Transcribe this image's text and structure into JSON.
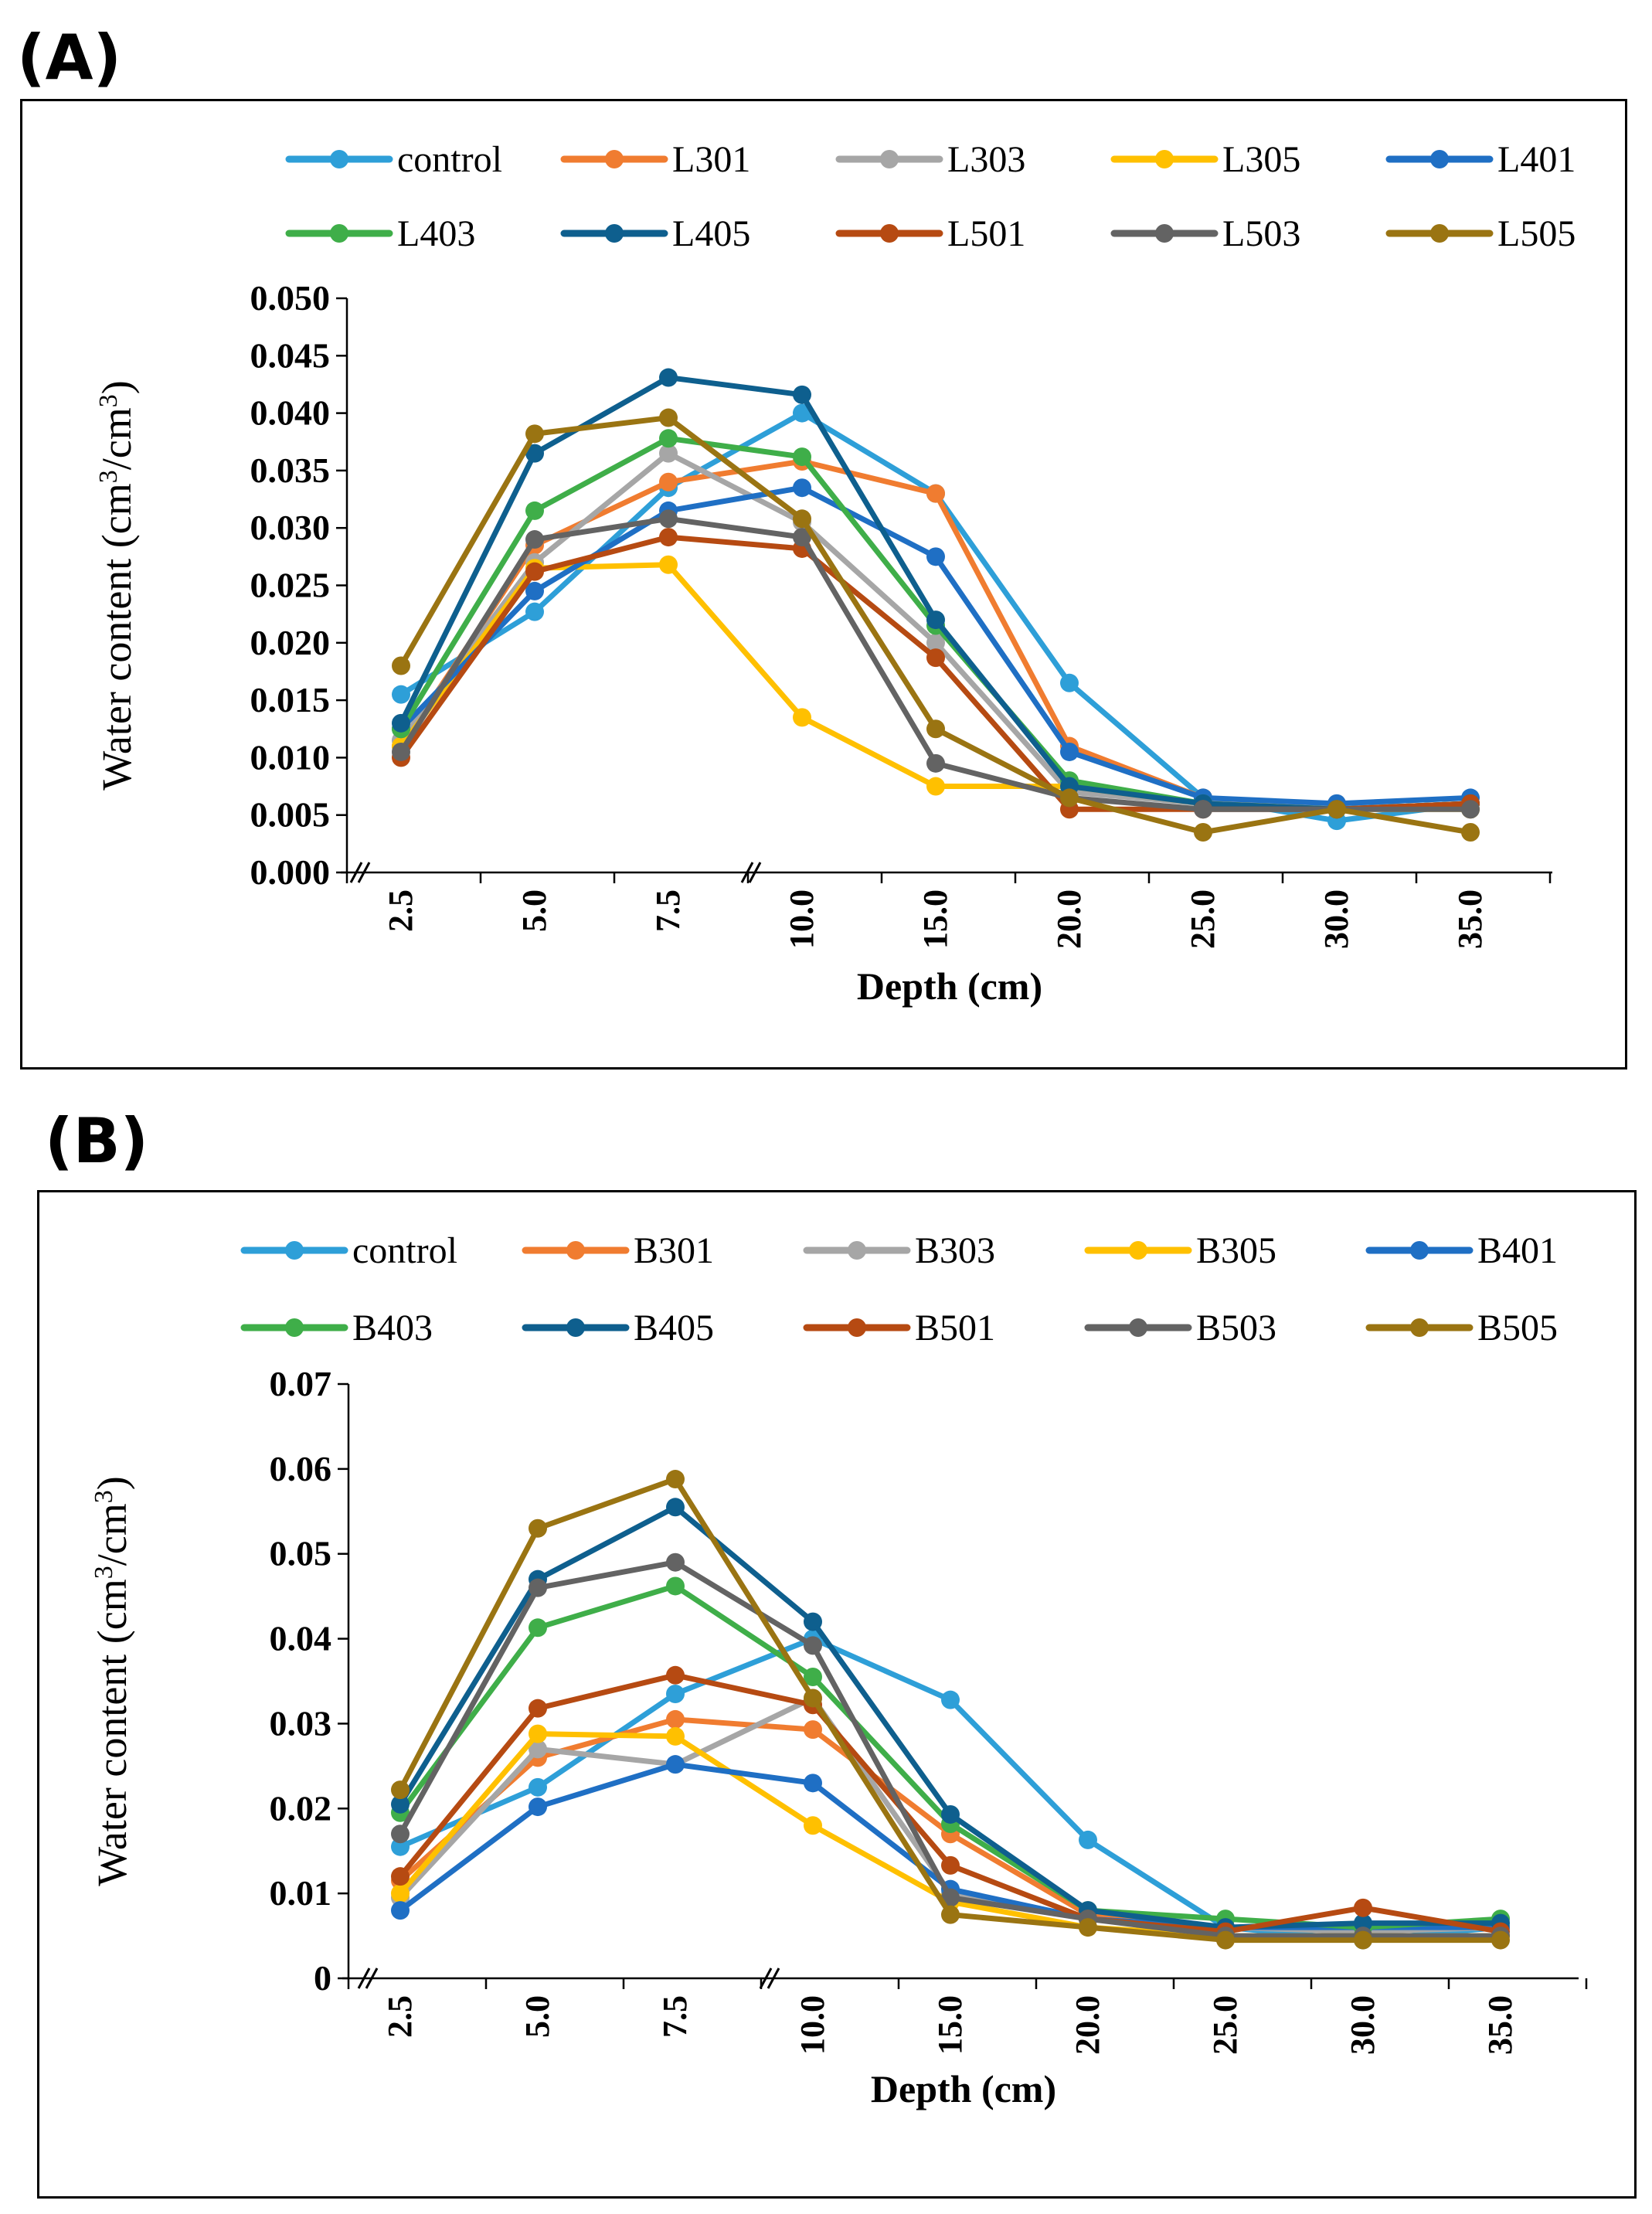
{
  "panels": {
    "a_label": "(A)",
    "b_label": "(B)"
  },
  "chart_data": [
    {
      "type": "line",
      "panel": "(A)",
      "categories": [
        "2.5",
        "5.0",
        "7.5",
        "10.0",
        "15.0",
        "20.0",
        "25.0",
        "30.0",
        "35.0"
      ],
      "xlabel": "Depth (cm)",
      "ylabel_main": "Water content (cm",
      "ylabel_sup1": "3",
      "ylabel_mid": "/cm",
      "ylabel_sup2": "3",
      "ylabel_end": ")",
      "ylim": [
        0,
        0.05
      ],
      "yticks": [
        "0.000",
        "0.005",
        "0.010",
        "0.015",
        "0.020",
        "0.025",
        "0.030",
        "0.035",
        "0.040",
        "0.045",
        "0.050"
      ],
      "series": [
        {
          "name": "control",
          "color": "#2e9fd8",
          "values": [
            0.0155,
            0.0227,
            0.0335,
            0.04,
            0.033,
            0.0165,
            0.0065,
            0.0045,
            0.006
          ]
        },
        {
          "name": "L301",
          "color": "#f07c30",
          "values": [
            0.011,
            0.0285,
            0.034,
            0.0358,
            0.033,
            0.011,
            0.0065,
            0.0055,
            0.006
          ]
        },
        {
          "name": "L303",
          "color": "#a6a6a6",
          "values": [
            0.0115,
            0.027,
            0.0365,
            0.0305,
            0.02,
            0.007,
            0.006,
            0.006,
            0.0055
          ]
        },
        {
          "name": "L305",
          "color": "#ffc000",
          "values": [
            0.011,
            0.0265,
            0.0268,
            0.0135,
            0.0075,
            0.0075,
            0.006,
            0.0055,
            0.0055
          ]
        },
        {
          "name": "L401",
          "color": "#1f6fc4",
          "values": [
            0.0125,
            0.0245,
            0.0315,
            0.0335,
            0.0275,
            0.0105,
            0.0065,
            0.006,
            0.0065
          ]
        },
        {
          "name": "L403",
          "color": "#3fae49",
          "values": [
            0.0125,
            0.0315,
            0.0378,
            0.0362,
            0.0215,
            0.008,
            0.006,
            0.0055,
            0.006
          ]
        },
        {
          "name": "L405",
          "color": "#0e5f8e",
          "values": [
            0.013,
            0.0365,
            0.0431,
            0.0416,
            0.022,
            0.0075,
            0.006,
            0.0055,
            0.006
          ]
        },
        {
          "name": "L501",
          "color": "#b64a12",
          "values": [
            0.01,
            0.0262,
            0.0292,
            0.0282,
            0.0187,
            0.0055,
            0.0055,
            0.0055,
            0.006
          ]
        },
        {
          "name": "L503",
          "color": "#636363",
          "values": [
            0.0105,
            0.029,
            0.0308,
            0.0292,
            0.0095,
            0.0065,
            0.0055,
            0.0055,
            0.0055
          ]
        },
        {
          "name": "L505",
          "color": "#9a7412",
          "values": [
            0.018,
            0.0382,
            0.0396,
            0.0308,
            0.0125,
            0.0065,
            0.0035,
            0.0055,
            0.0035
          ]
        }
      ]
    },
    {
      "type": "line",
      "panel": "(B)",
      "categories": [
        "2.5",
        "5.0",
        "7.5",
        "10.0",
        "15.0",
        "20.0",
        "25.0",
        "30.0",
        "35.0"
      ],
      "xlabel": "Depth (cm)",
      "ylabel_main": "Water content (cm",
      "ylabel_sup1": "3",
      "ylabel_mid": "/cm",
      "ylabel_sup2": "3",
      "ylabel_end": ")",
      "ylim": [
        0,
        0.07
      ],
      "yticks": [
        "0",
        "0.01",
        "0.02",
        "0.03",
        "0.04",
        "0.05",
        "0.06",
        "0.07"
      ],
      "series": [
        {
          "name": "control",
          "color": "#2e9fd8",
          "values": [
            0.0155,
            0.0225,
            0.0335,
            0.04,
            0.0328,
            0.0163,
            0.006,
            0.0045,
            0.006
          ]
        },
        {
          "name": "B301",
          "color": "#f07c30",
          "values": [
            0.0115,
            0.026,
            0.0305,
            0.0293,
            0.017,
            0.0075,
            0.006,
            0.006,
            0.006
          ]
        },
        {
          "name": "B303",
          "color": "#a6a6a6",
          "values": [
            0.0095,
            0.027,
            0.0252,
            0.033,
            0.01,
            0.007,
            0.006,
            0.0055,
            0.006
          ]
        },
        {
          "name": "B305",
          "color": "#ffc000",
          "values": [
            0.01,
            0.0288,
            0.0285,
            0.018,
            0.009,
            0.006,
            0.005,
            0.005,
            0.005
          ]
        },
        {
          "name": "B401",
          "color": "#1f6fc4",
          "values": [
            0.008,
            0.0202,
            0.0252,
            0.023,
            0.0105,
            0.007,
            0.006,
            0.006,
            0.006
          ]
        },
        {
          "name": "B403",
          "color": "#3fae49",
          "values": [
            0.0195,
            0.0413,
            0.0462,
            0.0355,
            0.0182,
            0.008,
            0.007,
            0.006,
            0.007
          ]
        },
        {
          "name": "B405",
          "color": "#0e5f8e",
          "values": [
            0.0205,
            0.047,
            0.0555,
            0.042,
            0.0193,
            0.008,
            0.006,
            0.0065,
            0.0065
          ]
        },
        {
          "name": "B501",
          "color": "#b64a12",
          "values": [
            0.012,
            0.0318,
            0.0357,
            0.0322,
            0.0133,
            0.007,
            0.0055,
            0.0083,
            0.0055
          ]
        },
        {
          "name": "B503",
          "color": "#636363",
          "values": [
            0.017,
            0.046,
            0.049,
            0.0392,
            0.0095,
            0.007,
            0.005,
            0.005,
            0.005
          ]
        },
        {
          "name": "B505",
          "color": "#9a7412",
          "values": [
            0.0222,
            0.053,
            0.0588,
            0.033,
            0.0075,
            0.006,
            0.0045,
            0.0045,
            0.0045
          ]
        }
      ]
    }
  ]
}
